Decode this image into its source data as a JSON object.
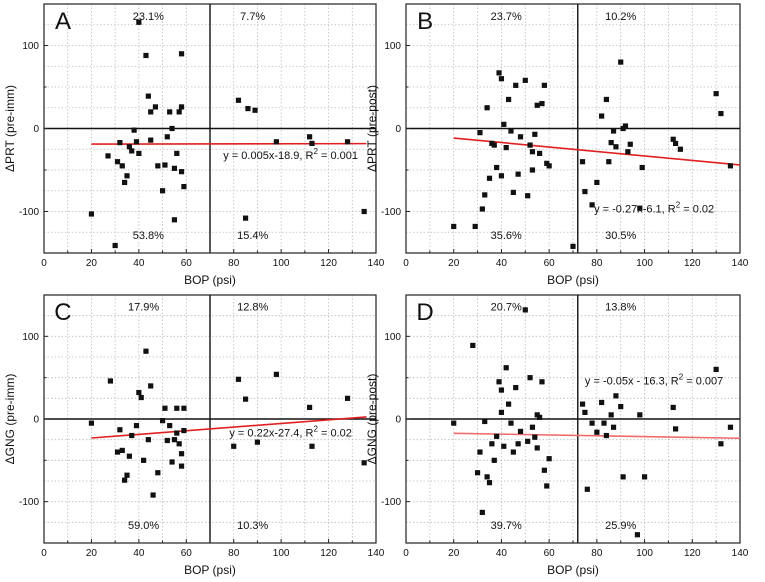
{
  "chart_data": [
    {
      "type": "scatter",
      "panel_label": "A",
      "xlabel": "BOP (psi)",
      "ylabel": "ΔPRT (pre-imm)",
      "xlim": [
        0,
        140
      ],
      "ylim": [
        -150,
        150
      ],
      "xticks": [
        0,
        20,
        40,
        60,
        80,
        100,
        120,
        140
      ],
      "yticks": [
        -100,
        0,
        100
      ],
      "divider_x": 70,
      "quadrants": {
        "top_left": "23.1%",
        "top_right": "7.7%",
        "bottom_left": "53.8%",
        "bottom_right": "15.4%"
      },
      "fit": {
        "equation": "y = 0.005x-18.9, R",
        "exponent": "2",
        "r2_text": " = 0.001",
        "slope": 0.005,
        "intercept": -18.9,
        "x_range": [
          20,
          136
        ],
        "color": "#e02020"
      },
      "points": [
        [
          20,
          -103
        ],
        [
          27,
          -33
        ],
        [
          30,
          -141
        ],
        [
          31,
          -40
        ],
        [
          32,
          -17
        ],
        [
          33,
          -45
        ],
        [
          34,
          -65
        ],
        [
          35,
          -57
        ],
        [
          36,
          -22
        ],
        [
          37,
          -27
        ],
        [
          38,
          -2
        ],
        [
          39,
          -16
        ],
        [
          40,
          -30
        ],
        [
          40,
          128
        ],
        [
          43,
          88
        ],
        [
          44,
          39
        ],
        [
          45,
          20
        ],
        [
          45,
          -14
        ],
        [
          47,
          26
        ],
        [
          48,
          -45
        ],
        [
          50,
          -75
        ],
        [
          51,
          -44
        ],
        [
          52,
          -10
        ],
        [
          53,
          20
        ],
        [
          54,
          0
        ],
        [
          55,
          -110
        ],
        [
          55,
          -48
        ],
        [
          56,
          -30
        ],
        [
          57,
          20
        ],
        [
          58,
          26
        ],
        [
          58,
          90
        ],
        [
          58,
          -52
        ],
        [
          59,
          -70
        ],
        [
          82,
          34
        ],
        [
          85,
          -108
        ],
        [
          86,
          24
        ],
        [
          89,
          22
        ],
        [
          98,
          -16
        ],
        [
          112,
          -10
        ],
        [
          113,
          -18
        ],
        [
          128,
          -16
        ],
        [
          135,
          -100
        ]
      ]
    },
    {
      "type": "scatter",
      "panel_label": "B",
      "xlabel": "BOP (psi)",
      "ylabel": "ΔPRT (pre-post)",
      "xlim": [
        0,
        140
      ],
      "ylim": [
        -150,
        150
      ],
      "xticks": [
        0,
        20,
        40,
        60,
        80,
        100,
        120,
        140
      ],
      "yticks": [
        -100,
        0,
        100
      ],
      "divider_x": 72,
      "quadrants": {
        "top_left": "23.7%",
        "top_right": "10.2%",
        "bottom_left": "35.6%",
        "bottom_right": "30.5%"
      },
      "fit": {
        "equation": "y = -0.27x-6.1, R",
        "exponent": "2",
        "r2_text": " = 0.02",
        "slope": -0.27,
        "intercept": -6.1,
        "x_range": [
          20,
          140
        ],
        "color": "#e02020"
      },
      "points": [
        [
          20,
          -118
        ],
        [
          29,
          -118
        ],
        [
          31,
          -5
        ],
        [
          32,
          -97
        ],
        [
          33,
          -80
        ],
        [
          34,
          25
        ],
        [
          35,
          -60
        ],
        [
          36,
          -18
        ],
        [
          37,
          -20
        ],
        [
          38,
          -47
        ],
        [
          39,
          67
        ],
        [
          40,
          60
        ],
        [
          40,
          -57
        ],
        [
          41,
          5
        ],
        [
          42,
          -23
        ],
        [
          43,
          35
        ],
        [
          44,
          -3
        ],
        [
          45,
          -77
        ],
        [
          46,
          52
        ],
        [
          47,
          -55
        ],
        [
          48,
          -10
        ],
        [
          50,
          58
        ],
        [
          51,
          -81
        ],
        [
          52,
          -20
        ],
        [
          53,
          -28
        ],
        [
          53,
          -50
        ],
        [
          54,
          -7
        ],
        [
          55,
          28
        ],
        [
          56,
          -30
        ],
        [
          57,
          30
        ],
        [
          58,
          52
        ],
        [
          59,
          -42
        ],
        [
          60,
          -45
        ],
        [
          70,
          -142
        ],
        [
          74,
          -40
        ],
        [
          75,
          -76
        ],
        [
          78,
          -92
        ],
        [
          80,
          -65
        ],
        [
          82,
          15
        ],
        [
          84,
          35
        ],
        [
          85,
          -40
        ],
        [
          86,
          -17
        ],
        [
          87,
          -3
        ],
        [
          88,
          -22
        ],
        [
          90,
          80
        ],
        [
          91,
          0
        ],
        [
          92,
          3
        ],
        [
          93,
          -28
        ],
        [
          94,
          -19
        ],
        [
          98,
          -96
        ],
        [
          99,
          -47
        ],
        [
          112,
          -13
        ],
        [
          113,
          -18
        ],
        [
          115,
          -25
        ],
        [
          130,
          42
        ],
        [
          132,
          18
        ],
        [
          136,
          -45
        ]
      ]
    },
    {
      "type": "scatter",
      "panel_label": "C",
      "xlabel": "BOP (psi)",
      "ylabel": "ΔGNG (pre-imm)",
      "xlim": [
        0,
        140
      ],
      "ylim": [
        -150,
        150
      ],
      "xticks": [
        0,
        20,
        40,
        60,
        80,
        100,
        120,
        140
      ],
      "yticks": [
        -100,
        0,
        100
      ],
      "divider_x": 70,
      "quadrants": {
        "top_left": "17.9%",
        "top_right": "12.8%",
        "bottom_left": "59.0%",
        "bottom_right": "10.3%"
      },
      "fit": {
        "equation": "y = 0.22x-27.4, R",
        "exponent": "2",
        "r2_text": " = 0.02",
        "slope": 0.22,
        "intercept": -27.4,
        "x_range": [
          20,
          136
        ],
        "color": "#e02020"
      },
      "points": [
        [
          20,
          -5
        ],
        [
          28,
          46
        ],
        [
          31,
          -40
        ],
        [
          32,
          -13
        ],
        [
          33,
          -38
        ],
        [
          34,
          -74
        ],
        [
          35,
          -68
        ],
        [
          36,
          -45
        ],
        [
          37,
          -20
        ],
        [
          39,
          -8
        ],
        [
          40,
          32
        ],
        [
          41,
          26
        ],
        [
          42,
          -50
        ],
        [
          43,
          82
        ],
        [
          44,
          -25
        ],
        [
          45,
          40
        ],
        [
          46,
          -92
        ],
        [
          48,
          -65
        ],
        [
          50,
          -2
        ],
        [
          51,
          13
        ],
        [
          52,
          -26
        ],
        [
          53,
          -8
        ],
        [
          54,
          -52
        ],
        [
          55,
          -25
        ],
        [
          56,
          13
        ],
        [
          56,
          -17
        ],
        [
          57,
          -30
        ],
        [
          58,
          -42
        ],
        [
          58,
          -57
        ],
        [
          59,
          13
        ],
        [
          59,
          -14
        ],
        [
          80,
          -33
        ],
        [
          82,
          48
        ],
        [
          85,
          24
        ],
        [
          90,
          -28
        ],
        [
          98,
          54
        ],
        [
          112,
          14
        ],
        [
          113,
          -33
        ],
        [
          128,
          25
        ],
        [
          135,
          -53
        ]
      ]
    },
    {
      "type": "scatter",
      "panel_label": "D",
      "xlabel": "BOP (psi)",
      "ylabel": "ΔGNG (pre-post)",
      "xlim": [
        0,
        140
      ],
      "ylim": [
        -150,
        150
      ],
      "xticks": [
        0,
        20,
        40,
        60,
        80,
        100,
        120,
        140
      ],
      "yticks": [
        -100,
        0,
        100
      ],
      "divider_x": 72,
      "quadrants": {
        "top_left": "20.7%",
        "top_right": "13.8%",
        "bottom_left": "39.7%",
        "bottom_right": "25.9%"
      },
      "fit": {
        "equation": "y = -0.05x - 16.3, R",
        "exponent": "2",
        "r2_text": " = 0.007",
        "slope": -0.05,
        "intercept": -16.3,
        "x_range": [
          20,
          140
        ],
        "color": "#f06a6a"
      },
      "points": [
        [
          20,
          -5
        ],
        [
          28,
          89
        ],
        [
          30,
          -65
        ],
        [
          31,
          -40
        ],
        [
          32,
          -113
        ],
        [
          33,
          -3
        ],
        [
          34,
          -70
        ],
        [
          35,
          -77
        ],
        [
          36,
          -30
        ],
        [
          37,
          -50
        ],
        [
          38,
          -21
        ],
        [
          39,
          45
        ],
        [
          40,
          35
        ],
        [
          40,
          8
        ],
        [
          41,
          -33
        ],
        [
          42,
          62
        ],
        [
          43,
          18
        ],
        [
          44,
          -5
        ],
        [
          45,
          -40
        ],
        [
          46,
          38
        ],
        [
          47,
          -30
        ],
        [
          48,
          -15
        ],
        [
          50,
          132
        ],
        [
          51,
          -27
        ],
        [
          52,
          50
        ],
        [
          53,
          -10
        ],
        [
          54,
          -22
        ],
        [
          55,
          5
        ],
        [
          55,
          -35
        ],
        [
          56,
          2
        ],
        [
          57,
          45
        ],
        [
          58,
          -62
        ],
        [
          59,
          -81
        ],
        [
          60,
          -48
        ],
        [
          74,
          18
        ],
        [
          75,
          8
        ],
        [
          76,
          -85
        ],
        [
          78,
          -5
        ],
        [
          80,
          -16
        ],
        [
          82,
          20
        ],
        [
          83,
          -5
        ],
        [
          84,
          -20
        ],
        [
          86,
          5
        ],
        [
          87,
          -10
        ],
        [
          88,
          28
        ],
        [
          90,
          15
        ],
        [
          91,
          -70
        ],
        [
          97,
          -140
        ],
        [
          98,
          5
        ],
        [
          100,
          -70
        ],
        [
          112,
          14
        ],
        [
          113,
          -12
        ],
        [
          130,
          60
        ],
        [
          132,
          -30
        ],
        [
          136,
          -10
        ]
      ]
    }
  ]
}
